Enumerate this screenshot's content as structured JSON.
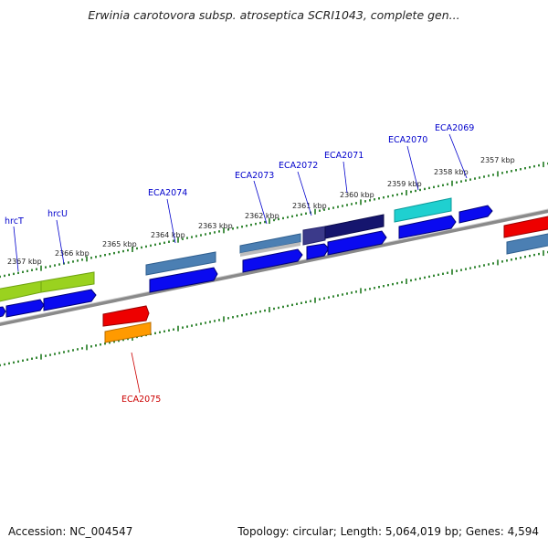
{
  "title": "Erwinia carotovora subsp. atroseptica SCRI1043, complete gen...",
  "footer": {
    "accession": "Accession: NC_004547",
    "summary": "Topology: circular; Length: 5,064,019 bp; Genes: 4,594"
  },
  "colors": {
    "backbone": "#8a8a8a",
    "tick": "#1f7a1f",
    "label_blue": "#0000cc",
    "label_red": "#cc0000",
    "cds_blue": "#0a0af0"
  },
  "kbp_labels": [
    "2357 kbp",
    "2358 kbp",
    "2359 kbp",
    "2360 kbp",
    "2361 kbp",
    "2362 kbp",
    "2363 kbp",
    "2364 kbp",
    "2365 kbp",
    "2366 kbp",
    "2367 kbp"
  ],
  "gene_labels": [
    {
      "text": "ECA2069",
      "color": "#0000cc"
    },
    {
      "text": "ECA2070",
      "color": "#0000cc"
    },
    {
      "text": "ECA2071",
      "color": "#0000cc"
    },
    {
      "text": "ECA2072",
      "color": "#0000cc"
    },
    {
      "text": "ECA2073",
      "color": "#0000cc"
    },
    {
      "text": "ECA2074",
      "color": "#0000cc"
    },
    {
      "text": "hrcU",
      "color": "#0000cc"
    },
    {
      "text": "hrcT",
      "color": "#0000cc"
    },
    {
      "text": "ECA2075",
      "color": "#cc0000"
    }
  ]
}
